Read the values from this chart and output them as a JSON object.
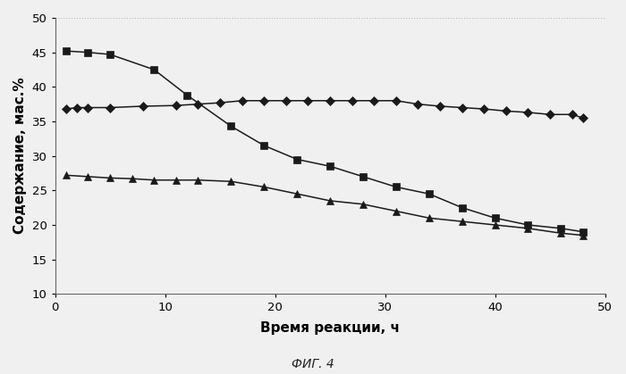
{
  "square_x": [
    1,
    3,
    5,
    9,
    12,
    16,
    19,
    22,
    25,
    28,
    31,
    34,
    37,
    40,
    43,
    46,
    48
  ],
  "square_y": [
    45.2,
    45.0,
    44.7,
    42.5,
    38.8,
    34.3,
    31.5,
    29.5,
    28.5,
    27.0,
    25.5,
    24.5,
    22.5,
    21.0,
    20.0,
    19.5,
    19.0
  ],
  "diamond_x": [
    1,
    2,
    3,
    5,
    8,
    11,
    13,
    15,
    17,
    19,
    21,
    23,
    25,
    27,
    29,
    31,
    33,
    35,
    37,
    39,
    41,
    43,
    45,
    47,
    48
  ],
  "diamond_y": [
    36.8,
    37.0,
    37.0,
    37.0,
    37.2,
    37.3,
    37.5,
    37.7,
    38.0,
    38.0,
    38.0,
    38.0,
    38.0,
    38.0,
    38.0,
    38.0,
    37.5,
    37.2,
    37.0,
    36.8,
    36.5,
    36.3,
    36.0,
    36.0,
    35.5
  ],
  "triangle_x": [
    1,
    3,
    5,
    7,
    9,
    11,
    13,
    16,
    19,
    22,
    25,
    28,
    31,
    34,
    37,
    40,
    43,
    46,
    48
  ],
  "triangle_y": [
    27.2,
    27.0,
    26.8,
    26.7,
    26.5,
    26.5,
    26.5,
    26.3,
    25.5,
    24.5,
    23.5,
    23.0,
    22.0,
    21.0,
    20.5,
    20.0,
    19.5,
    18.8,
    18.5
  ],
  "xlabel": "Время реакции, ч",
  "ylabel": "Содержание, мас.%",
  "caption": "ФИГ. 4",
  "xlim": [
    0,
    50
  ],
  "ylim": [
    10,
    50
  ],
  "xticks": [
    0,
    10,
    20,
    30,
    40,
    50
  ],
  "yticks": [
    10,
    15,
    20,
    25,
    30,
    35,
    40,
    45,
    50
  ],
  "line_color": "#1a1a1a",
  "bg_color": "#f0f0f0",
  "grid_color": "#bbbbbb"
}
